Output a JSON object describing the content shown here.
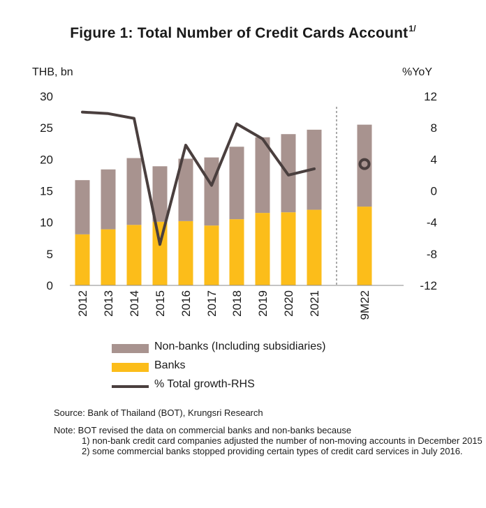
{
  "title": {
    "text": "Figure 1: Total Number of Credit Cards Account",
    "superscript": "1/"
  },
  "chart_data": {
    "type": "bar",
    "stacked": true,
    "categories": [
      "2012",
      "2013",
      "2014",
      "2015",
      "2016",
      "2017",
      "2018",
      "2019",
      "2020",
      "2021",
      "9M22"
    ],
    "series": [
      {
        "name": "Non-banks (Including subsidiaries)",
        "type": "bar",
        "axis": "left",
        "color": "#a8938f",
        "values": [
          8.6,
          9.5,
          10.6,
          8.8,
          9.9,
          10.8,
          11.5,
          12.0,
          12.4,
          12.7,
          13.0
        ]
      },
      {
        "name": "Banks",
        "type": "bar",
        "axis": "left",
        "color": "#fcbd1a",
        "values": [
          8.1,
          8.9,
          9.6,
          10.1,
          10.2,
          9.5,
          10.5,
          11.5,
          11.6,
          12.0,
          12.5
        ]
      },
      {
        "name": "% Total growth-RHS",
        "type": "line",
        "axis": "right",
        "color": "#4a3f3e",
        "values": [
          10.0,
          9.8,
          9.2,
          -6.8,
          5.8,
          0.7,
          8.5,
          6.6,
          2.0,
          2.8,
          3.4
        ]
      }
    ],
    "left_axis": {
      "label": "THB, bn",
      "ylim": [
        0,
        30
      ],
      "ticks": [
        "0",
        "5",
        "10",
        "15",
        "20",
        "25",
        "30"
      ]
    },
    "right_axis": {
      "label": "%YoY",
      "ylim": [
        -12,
        12
      ],
      "ticks": [
        "-12",
        "-8",
        "-4",
        "0",
        "4",
        "8",
        "12"
      ]
    },
    "grid": false,
    "legend_position": "bottom"
  },
  "legend": [
    {
      "label": "Non-banks (Including subsidiaries)",
      "color": "#a8938f"
    },
    {
      "label": "Banks",
      "color": "#fcbd1a"
    },
    {
      "label": "% Total growth-RHS",
      "color": "#4a3f3e"
    }
  ],
  "notes": {
    "source": "Source: Bank of Thailand (BOT), Krungsri Research",
    "note_intro": "Note: BOT revised the data on commercial banks and non-banks because",
    "items": [
      "1) non-bank credit card companies adjusted the number of non-moving accounts in December 2015",
      "2) some commercial banks stopped providing certain types of credit card services in July 2016."
    ]
  }
}
